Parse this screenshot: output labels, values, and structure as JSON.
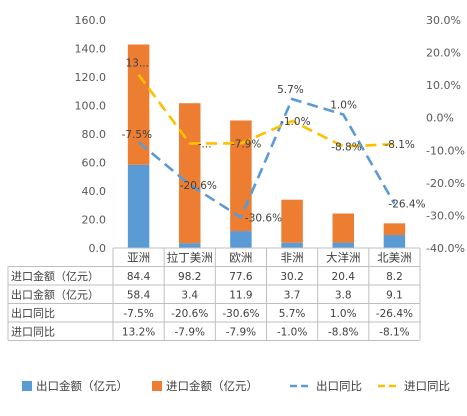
{
  "chart_data": {
    "type": "bar",
    "categories": [
      "亚洲",
      "拉丁美洲",
      "欧洲",
      "非洲",
      "大洋洲",
      "北美洲"
    ],
    "series": [
      {
        "name": "出口金额（亿元）",
        "kind": "bar",
        "axis": "left",
        "values": [
          58.4,
          3.4,
          11.9,
          3.7,
          3.8,
          9.1
        ],
        "color": "#5b9bd5"
      },
      {
        "name": "进口金额（亿元）",
        "kind": "bar",
        "axis": "left",
        "values": [
          84.4,
          98.2,
          77.6,
          30.2,
          20.4,
          8.2
        ],
        "color": "#ed7d31"
      },
      {
        "name": "出口同比",
        "kind": "line",
        "axis": "right",
        "values": [
          -7.5,
          -20.6,
          -30.6,
          5.7,
          1.0,
          -26.4
        ],
        "value_labels": [
          "-7.5%",
          "-20.6%",
          "-30.6%",
          "5.7%",
          "1.0%",
          "-26.4%"
        ],
        "color": "#5b9bd5",
        "dash": "long-dash"
      },
      {
        "name": "进口同比",
        "kind": "line",
        "axis": "right",
        "values": [
          13.2,
          -7.9,
          -7.9,
          -1.0,
          -8.8,
          -8.1
        ],
        "value_labels": [
          "13...",
          "-...",
          "-7.9%",
          "-1.0%",
          "-8.8%",
          "-8.1%"
        ],
        "color": "#ffc000",
        "dash": "long-dash"
      }
    ],
    "stacked": true,
    "left_axis": {
      "min": 0,
      "max": 160,
      "ticks": [
        "0.0",
        "20.0",
        "40.0",
        "60.0",
        "80.0",
        "100.0",
        "120.0",
        "140.0",
        "160.0"
      ]
    },
    "right_axis": {
      "min": -40,
      "max": 30,
      "ticks": [
        "-40.0%",
        "-30.0%",
        "-20.0%",
        "-10.0%",
        "0.0%",
        "10.0%",
        "20.0%",
        "30.0%"
      ]
    },
    "table": {
      "rows": [
        {
          "label": "进口金额（亿元）",
          "cells": [
            "84.4",
            "98.2",
            "77.6",
            "30.2",
            "20.4",
            "8.2"
          ]
        },
        {
          "label": "出口金额（亿元）",
          "cells": [
            "58.4",
            "3.4",
            "11.9",
            "3.7",
            "3.8",
            "9.1"
          ]
        },
        {
          "label": "出口同比",
          "cells": [
            "-7.5%",
            "-20.6%",
            "-30.6%",
            "5.7%",
            "1.0%",
            "-26.4%"
          ]
        },
        {
          "label": "进口同比",
          "cells": [
            "13.2%",
            "-7.9%",
            "-7.9%",
            "-1.0%",
            "-8.8%",
            "-8.1%"
          ]
        }
      ]
    },
    "legend": {
      "position": "bottom",
      "items": [
        {
          "label": "出口金额（亿元）",
          "marker": "bar",
          "color": "#5b9bd5"
        },
        {
          "label": "进口金额（亿元）",
          "marker": "bar",
          "color": "#ed7d31"
        },
        {
          "label": "出口同比",
          "marker": "dash",
          "color": "#5b9bd5"
        },
        {
          "label": "进口同比",
          "marker": "dash",
          "color": "#ffc000"
        }
      ]
    },
    "grid": false
  }
}
